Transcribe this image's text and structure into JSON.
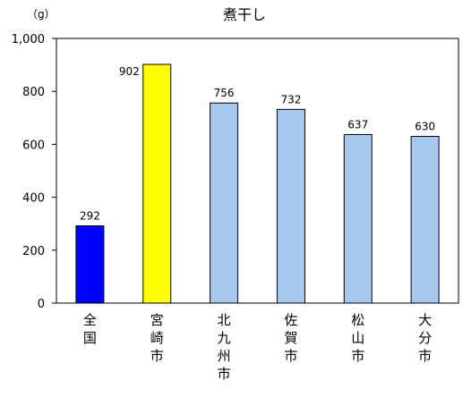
{
  "chart_data": {
    "type": "bar",
    "title": "煮干し",
    "unit_label": "（g）",
    "categories": [
      "全国",
      "宮崎市",
      "北九州市",
      "佐賀市",
      "松山市",
      "大分市"
    ],
    "values": [
      292,
      902,
      756,
      732,
      637,
      630
    ],
    "data_labels": [
      "292",
      "902",
      "756",
      "732",
      "637",
      "630"
    ],
    "bar_colors": [
      "#0000ff",
      "#ffff00",
      "#a6c8ee",
      "#a6c8ee",
      "#a6c8ee",
      "#a6c8ee"
    ],
    "ylim": [
      0,
      1000
    ],
    "yticks": [
      0,
      200,
      400,
      600,
      800,
      1000
    ],
    "ytick_labels": [
      "0",
      "200",
      "400",
      "600",
      "800",
      "1,000"
    ],
    "grid": false,
    "legend": "none"
  }
}
